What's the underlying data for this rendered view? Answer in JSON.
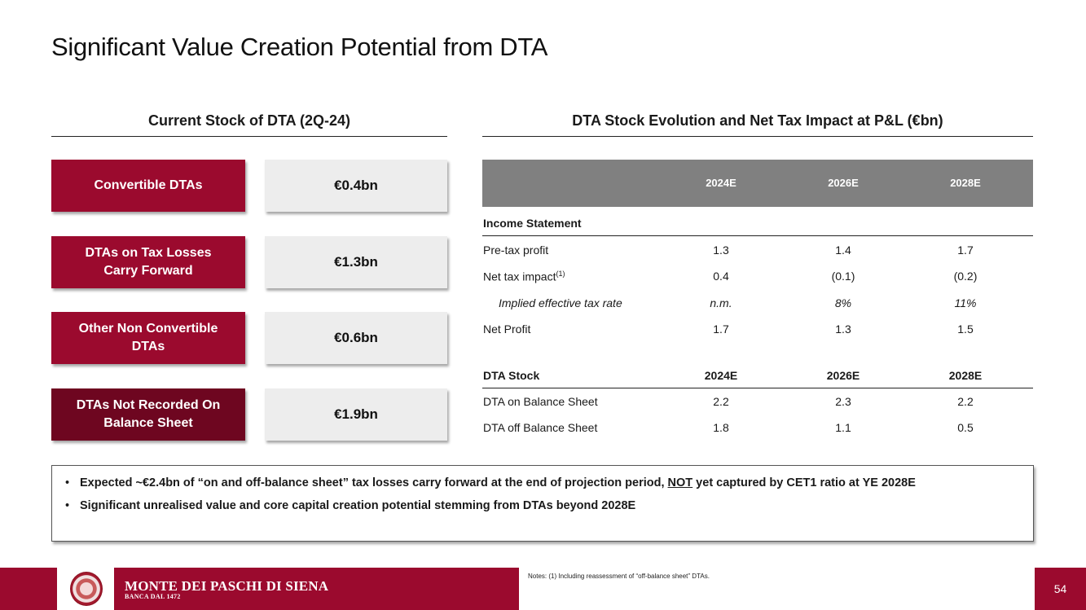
{
  "title": "Significant Value Creation Potential from DTA",
  "left_section": {
    "heading": "Current Stock of DTA (2Q-24)",
    "items": [
      {
        "label": "Convertible DTAs",
        "value": "€0.4bn"
      },
      {
        "label": "DTAs on Tax Losses Carry Forward",
        "value": "€1.3bn"
      },
      {
        "label": "Other Non Convertible DTAs",
        "value": "€0.6bn"
      },
      {
        "label": "DTAs Not Recorded On Balance Sheet",
        "value": "€1.9bn"
      }
    ]
  },
  "right_section": {
    "heading": "DTA Stock Evolution and Net Tax Impact at P&L (€bn)",
    "columns": [
      "2024E",
      "2026E",
      "2028E"
    ],
    "income_statement": {
      "heading": "Income Statement",
      "rows": [
        {
          "label": "Pre-tax profit",
          "values": [
            "1.3",
            "1.4",
            "1.7"
          ]
        },
        {
          "label": "Net tax impact",
          "note": "(1)",
          "values": [
            "0.4",
            "(0.1)",
            "(0.2)"
          ]
        },
        {
          "label": "Implied effective tax rate",
          "values": [
            "n.m.",
            "8%",
            "11%"
          ]
        },
        {
          "label": "Net Profit",
          "values": [
            "1.7",
            "1.3",
            "1.5"
          ]
        }
      ]
    },
    "dta_stock": {
      "heading": "DTA Stock",
      "columns": [
        "2024E",
        "2026E",
        "2028E"
      ],
      "rows": [
        {
          "label": "DTA on Balance Sheet",
          "values": [
            "2.2",
            "2.3",
            "2.2"
          ]
        },
        {
          "label": "DTA off Balance Sheet",
          "values": [
            "1.8",
            "1.1",
            "0.5"
          ]
        }
      ]
    }
  },
  "callout": {
    "bullet1_pre": "Expected ~€2.4bn of “on and off-balance sheet” tax losses carry forward at the end of projection period, ",
    "bullet1_underline": "NOT",
    "bullet1_post": " yet captured by CET1 ratio at YE 2028E",
    "bullet2": "Significant unrealised value and core capital creation potential stemming from DTAs beyond 2028E"
  },
  "footer": {
    "brand": "MONTE DEI PASCHI DI SIENA",
    "brand_sub": "BANCA DAL 1472",
    "notes": "Notes: (1) Including reassessment of “off-balance sheet” DTAs.",
    "page_number": "54"
  },
  "colors": {
    "accent": "#9b0a2e",
    "accent_dark": "#6e0620",
    "header_gray": "#808080",
    "value_bg": "#ededed"
  }
}
